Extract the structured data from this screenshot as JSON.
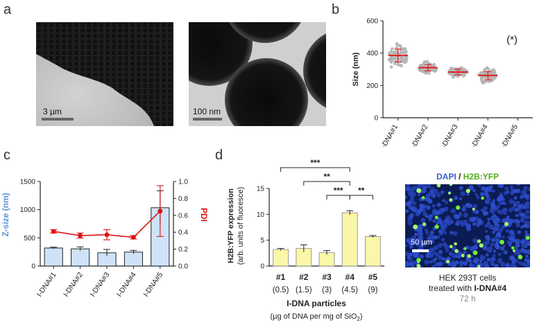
{
  "panels": {
    "a": "a",
    "b": "b",
    "c": "c",
    "d": "d"
  },
  "panel_a": {
    "left_scale_label": "3 µm",
    "right_scale_label": "100 nm"
  },
  "panel_d_image": {
    "title_dapi": "DAPI",
    "title_sep": " / ",
    "title_yfp": "H2B:YFP",
    "scale_label": "50 µm",
    "caption_line1": "HEK 293T cells",
    "caption_line2_prefix": "treated with ",
    "caption_line2_bold": "I-DNA#4",
    "caption_line3": "72 h"
  },
  "colors": {
    "dapi": "#3a5bd0",
    "yfp": "#66cc33",
    "pdi_red": "#dd1111",
    "zsize_blue": "#5b8fd6",
    "bar_fill_blue": "#cfe2f7",
    "bar_fill_yellow": "#fbf7a8",
    "median_red": "#e02020",
    "grey_text": "#888888"
  },
  "chart_data": [
    {
      "id": "b",
      "type": "scatter",
      "title": "",
      "ylabel": "Size (nm)",
      "ylim": [
        0,
        600
      ],
      "yticks": [
        0,
        200,
        400,
        600
      ],
      "categories": [
        "I-DNA#1",
        "I-DNA#2",
        "I-DNA#3",
        "I-DNA#4",
        "I-DNA#5"
      ],
      "medians": [
        385,
        310,
        283,
        262,
        null
      ],
      "sd_low": [
        345,
        290,
        265,
        235,
        null
      ],
      "sd_high": [
        425,
        330,
        300,
        285,
        null
      ],
      "spread_min": [
        310,
        270,
        250,
        215,
        null
      ],
      "spread_max": [
        560,
        360,
        330,
        310,
        null
      ],
      "annotation": "(*)"
    },
    {
      "id": "c",
      "type": "bar",
      "ylabel": "Z-size (nm)",
      "y2label": "PDI",
      "ylim": [
        0,
        1500
      ],
      "yticks": [
        0,
        500,
        1000,
        1500
      ],
      "y2lim": [
        0,
        1.0
      ],
      "y2ticks": [
        "0.0",
        "0.2",
        "0.4",
        "0.6",
        "0.8",
        "1.0"
      ],
      "categories": [
        "I-DNA#1",
        "I-DNA#2",
        "I-DNA#3",
        "I-DNA#4",
        "I-DNA#5"
      ],
      "series": [
        {
          "name": "Z-size",
          "values": [
            320,
            305,
            235,
            248,
            1035
          ],
          "errors": [
            15,
            35,
            60,
            30,
            300
          ]
        },
        {
          "name": "PDI",
          "values": [
            0.41,
            0.36,
            0.37,
            0.34,
            0.65
          ],
          "errors": [
            0.02,
            0.03,
            0.06,
            0.02,
            0.3
          ]
        }
      ]
    },
    {
      "id": "d",
      "type": "bar",
      "ylabel": "H2B:YFP expression",
      "ylabel2": "(arb. units of fluoresce)",
      "ylim": [
        0,
        15
      ],
      "yticks": [
        0,
        5,
        10,
        15
      ],
      "categories": [
        "#1",
        "#2",
        "#3",
        "#4",
        "#5"
      ],
      "sublabels": [
        "(0.5)",
        "(1.5)",
        "(3)",
        "(4.5)",
        "(9)"
      ],
      "values": [
        3.2,
        3.4,
        2.6,
        10.3,
        5.7
      ],
      "errors": [
        0.2,
        0.7,
        0.4,
        0.4,
        0.2
      ],
      "xlabel": "I-DNA particles",
      "xlabel2_prefix": "(µg of DNA per mg of SiO",
      "xlabel2_sub": "2",
      "xlabel2_suffix": ")",
      "significance": [
        {
          "from": 0,
          "to": 3,
          "label": "***"
        },
        {
          "from": 1,
          "to": 3,
          "label": "**"
        },
        {
          "from": 2,
          "to": 3,
          "label": "***"
        },
        {
          "from": 3,
          "to": 4,
          "label": "**"
        }
      ]
    }
  ]
}
